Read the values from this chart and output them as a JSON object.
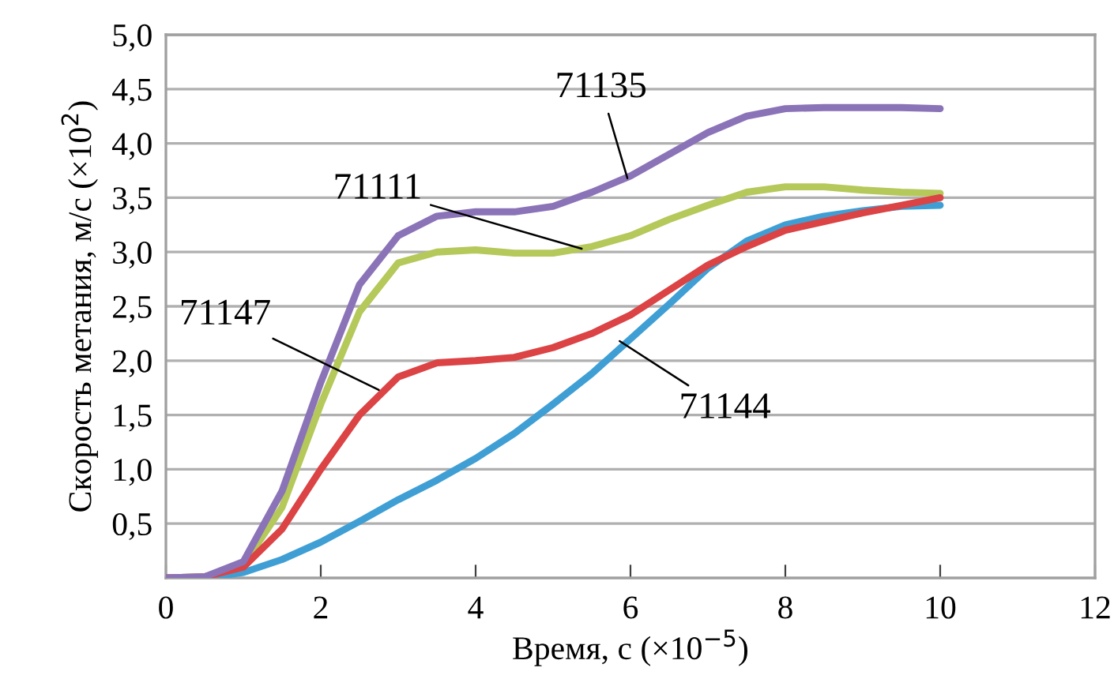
{
  "chart_data": {
    "type": "line",
    "xlabel": "Время, с (×10$^{−5}$)",
    "ylabel": "Скорость метания, м/с (×10$^{2}$)",
    "x": [
      0,
      0.5,
      1,
      1.5,
      2,
      2.5,
      3,
      3.5,
      4,
      4.5,
      5,
      5.5,
      6,
      6.5,
      7,
      7.5,
      8,
      8.5,
      9,
      9.5,
      10
    ],
    "series": [
      {
        "color": "#3f9fd4",
        "values": [
          0,
          0,
          0.05,
          0.17,
          0.33,
          0.52,
          0.72,
          0.9,
          1.1,
          1.33,
          1.6,
          1.88,
          2.2,
          2.52,
          2.85,
          3.1,
          3.25,
          3.33,
          3.38,
          3.42,
          3.43
        ]
      },
      {
        "color": "#b5c85a",
        "values": [
          0,
          0.01,
          0.12,
          0.65,
          1.6,
          2.45,
          2.9,
          3.0,
          3.02,
          2.99,
          2.99,
          3.05,
          3.15,
          3.3,
          3.43,
          3.55,
          3.6,
          3.6,
          3.57,
          3.55,
          3.54
        ]
      },
      {
        "color": "#db4345",
        "values": [
          0,
          0.01,
          0.1,
          0.45,
          1.0,
          1.5,
          1.85,
          1.98,
          2.0,
          2.03,
          2.12,
          2.25,
          2.42,
          2.65,
          2.88,
          3.05,
          3.2,
          3.28,
          3.36,
          3.43,
          3.5
        ]
      },
      {
        "color": "#8b73b8",
        "values": [
          0,
          0.01,
          0.15,
          0.8,
          1.8,
          2.7,
          3.15,
          3.33,
          3.37,
          3.37,
          3.42,
          3.55,
          3.7,
          3.9,
          4.1,
          4.25,
          4.32,
          4.33,
          4.33,
          4.33,
          4.32
        ]
      }
    ],
    "annotations": [
      {
        "text": "71135",
        "x": 5.96,
        "y": 3.68
      },
      {
        "text": "71111",
        "x": 5.37,
        "y": 3.03
      },
      {
        "text": "71147",
        "x": 2.75,
        "y": 1.73
      },
      {
        "text": "71144",
        "x": 5.86,
        "y": 2.18
      }
    ],
    "xlim": [
      0,
      12
    ],
    "xticks": [
      0,
      2,
      4,
      6,
      8,
      10,
      12
    ],
    "ylim": [
      0,
      5
    ],
    "yticks": [
      {
        "value": 0.5,
        "label": "0,5"
      },
      {
        "value": 1,
        "label": "1,0"
      },
      {
        "value": 1.5,
        "label": "1,5"
      },
      {
        "value": 2,
        "label": "2,0"
      },
      {
        "value": 2.5,
        "label": "2,5"
      },
      {
        "value": 3,
        "label": "3,0"
      },
      {
        "value": 3.5,
        "label": "3,5"
      },
      {
        "value": 4,
        "label": "4,0"
      },
      {
        "value": 4.5,
        "label": "4,5"
      },
      {
        "value": 5,
        "label": "5,0"
      }
    ],
    "grid": "y",
    "marker": "none",
    "line_style": "solid"
  }
}
